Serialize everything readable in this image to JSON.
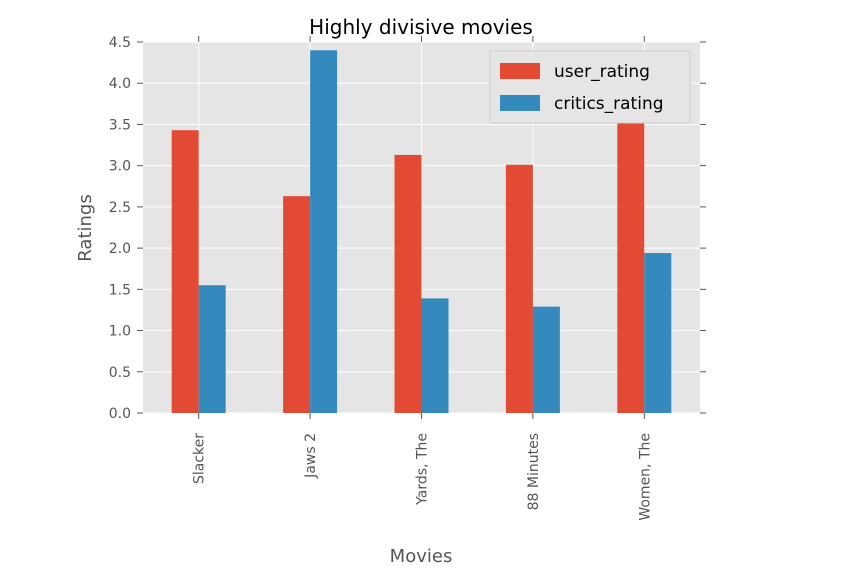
{
  "chart_data": {
    "type": "bar",
    "title": "Highly divisive movies",
    "xlabel": "Movies",
    "ylabel": "Ratings",
    "categories": [
      "Slacker",
      "Jaws 2",
      "Yards, The",
      "88 Minutes",
      "Women, The"
    ],
    "series": [
      {
        "name": "user_rating",
        "color": "#E24A33",
        "values": [
          3.43,
          2.63,
          3.13,
          3.01,
          3.52
        ]
      },
      {
        "name": "critics_rating",
        "color": "#348ABD",
        "values": [
          1.55,
          4.4,
          1.39,
          1.29,
          1.94
        ]
      }
    ],
    "ylim": [
      0,
      4.5
    ],
    "yticks": [
      "0.0",
      "0.5",
      "1.0",
      "1.5",
      "2.0",
      "2.5",
      "3.0",
      "3.5",
      "4.0",
      "4.5"
    ],
    "grid": true,
    "legend_position": "top-right",
    "plot_background": "#E5E5E5"
  }
}
